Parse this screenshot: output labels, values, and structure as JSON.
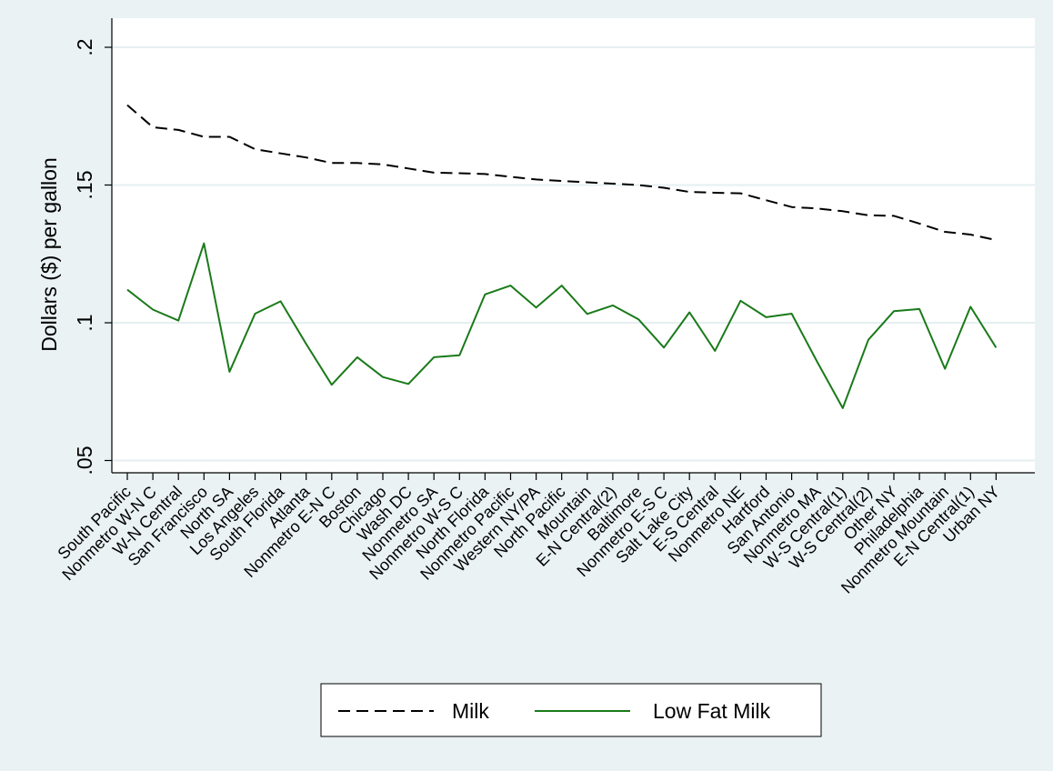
{
  "chart_data": {
    "type": "line",
    "title": "",
    "xlabel": "",
    "ylabel": "Dollars ($) per gallon",
    "ylim": [
      0.045,
      0.205
    ],
    "yticks": [
      0.05,
      0.1,
      0.15,
      0.2
    ],
    "ytick_labels": [
      ".05",
      ".1",
      ".15",
      ".2"
    ],
    "grid": true,
    "legend_position": "bottom",
    "categories": [
      "South Pacific",
      "Nonmetro W-N C",
      "W-N Central",
      "San Francisco",
      "North SA",
      "Los Angeles",
      "South Florida",
      "Atlanta",
      "Nonmetro E-N C",
      "Boston",
      "Chicago",
      "Wash DC",
      "Nonmetro SA",
      "Nonmetro W-S C",
      "North Florida",
      "Nonmetro Pacific",
      "Western NY/PA",
      "North Pacific",
      "Mountain",
      "E-N Central(2)",
      "Baltimore",
      "Nonmetro E-S C",
      "Salt Lake City",
      "E-S Central",
      "Nonmetro NE",
      "Hartford",
      "San Antonio",
      "Nonmetro MA",
      "W-S Central(1)",
      "W-S Central(2)",
      "Other NY",
      "Philadelphia",
      "Nonmetro Mountain",
      "E-N Central(1)",
      "Urban NY"
    ],
    "series": [
      {
        "name": "Milk",
        "color": "#000000",
        "dash": "dashed",
        "values": [
          0.179,
          0.171,
          0.17,
          0.1675,
          0.1675,
          0.163,
          0.1615,
          0.16,
          0.158,
          0.158,
          0.1575,
          0.156,
          0.1545,
          0.1543,
          0.154,
          0.153,
          0.152,
          0.1515,
          0.151,
          0.1505,
          0.15,
          0.149,
          0.1475,
          0.1472,
          0.147,
          0.1445,
          0.142,
          0.1415,
          0.1405,
          0.139,
          0.1388,
          0.136,
          0.133,
          0.132,
          0.13
        ]
      },
      {
        "name": "Low Fat Milk",
        "color": "#1a7a1a",
        "dash": "solid",
        "values": [
          0.112,
          0.1048,
          0.1008,
          0.1288,
          0.0822,
          0.1033,
          0.1078,
          0.0923,
          0.0775,
          0.0875,
          0.0803,
          0.0778,
          0.0875,
          0.0882,
          0.1103,
          0.1135,
          0.1055,
          0.1135,
          0.1032,
          0.1063,
          0.1013,
          0.091,
          0.1038,
          0.0898,
          0.108,
          0.102,
          0.1033,
          0.0858,
          0.069,
          0.0938,
          0.1042,
          0.105,
          0.0833,
          0.1058,
          0.091
        ]
      }
    ]
  }
}
